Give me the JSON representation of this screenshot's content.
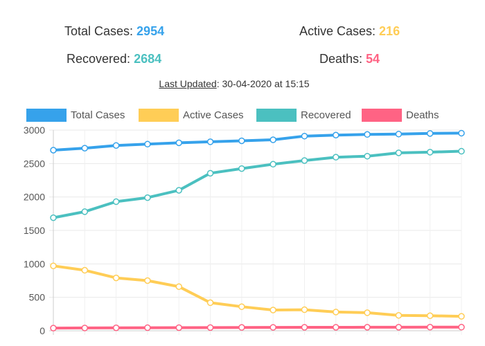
{
  "stats": {
    "total_label": "Total Cases: ",
    "total_value": "2954",
    "active_label": "Active Cases: ",
    "active_value": "216",
    "recovered_label": "Recovered: ",
    "recovered_value": "2684",
    "deaths_label": "Deaths: ",
    "deaths_value": "54"
  },
  "updated": {
    "label": "Last Updated",
    "value": ": 30-04-2020 at 15:15"
  },
  "colors": {
    "total": "#36A2EB",
    "active": "#FFCD56",
    "recovered": "#4BC0C0",
    "deaths": "#FF6384",
    "stat_total": "#36A2EB",
    "stat_active": "#FFCD56",
    "stat_recovered": "#4BC0C0",
    "stat_deaths": "#FF6384"
  },
  "chart_data": {
    "type": "line",
    "title": "",
    "xlabel": "",
    "ylabel": "",
    "ylim": [
      0,
      3000
    ],
    "yticks": [
      0,
      500,
      1000,
      1500,
      2000,
      2500,
      3000
    ],
    "grid": true,
    "legend_position": "top",
    "x": [
      "",
      "",
      "",
      "",
      "",
      "",
      "",
      "",
      "",
      "",
      "",
      "",
      "",
      ""
    ],
    "series": [
      {
        "name": "Total Cases",
        "color_key": "total",
        "values": [
          2700,
          2730,
          2770,
          2790,
          2810,
          2825,
          2840,
          2855,
          2910,
          2925,
          2935,
          2940,
          2950,
          2954
        ]
      },
      {
        "name": "Active Cases",
        "color_key": "active",
        "values": [
          970,
          905,
          790,
          750,
          660,
          420,
          360,
          310,
          315,
          280,
          270,
          230,
          225,
          216
        ]
      },
      {
        "name": "Recovered",
        "color_key": "recovered",
        "values": [
          1690,
          1780,
          1930,
          1990,
          2100,
          2355,
          2425,
          2490,
          2545,
          2595,
          2610,
          2660,
          2670,
          2684
        ]
      },
      {
        "name": "Deaths",
        "color_key": "deaths",
        "values": [
          40,
          42,
          44,
          46,
          47,
          48,
          50,
          51,
          52,
          52,
          53,
          53,
          54,
          54
        ]
      }
    ]
  }
}
